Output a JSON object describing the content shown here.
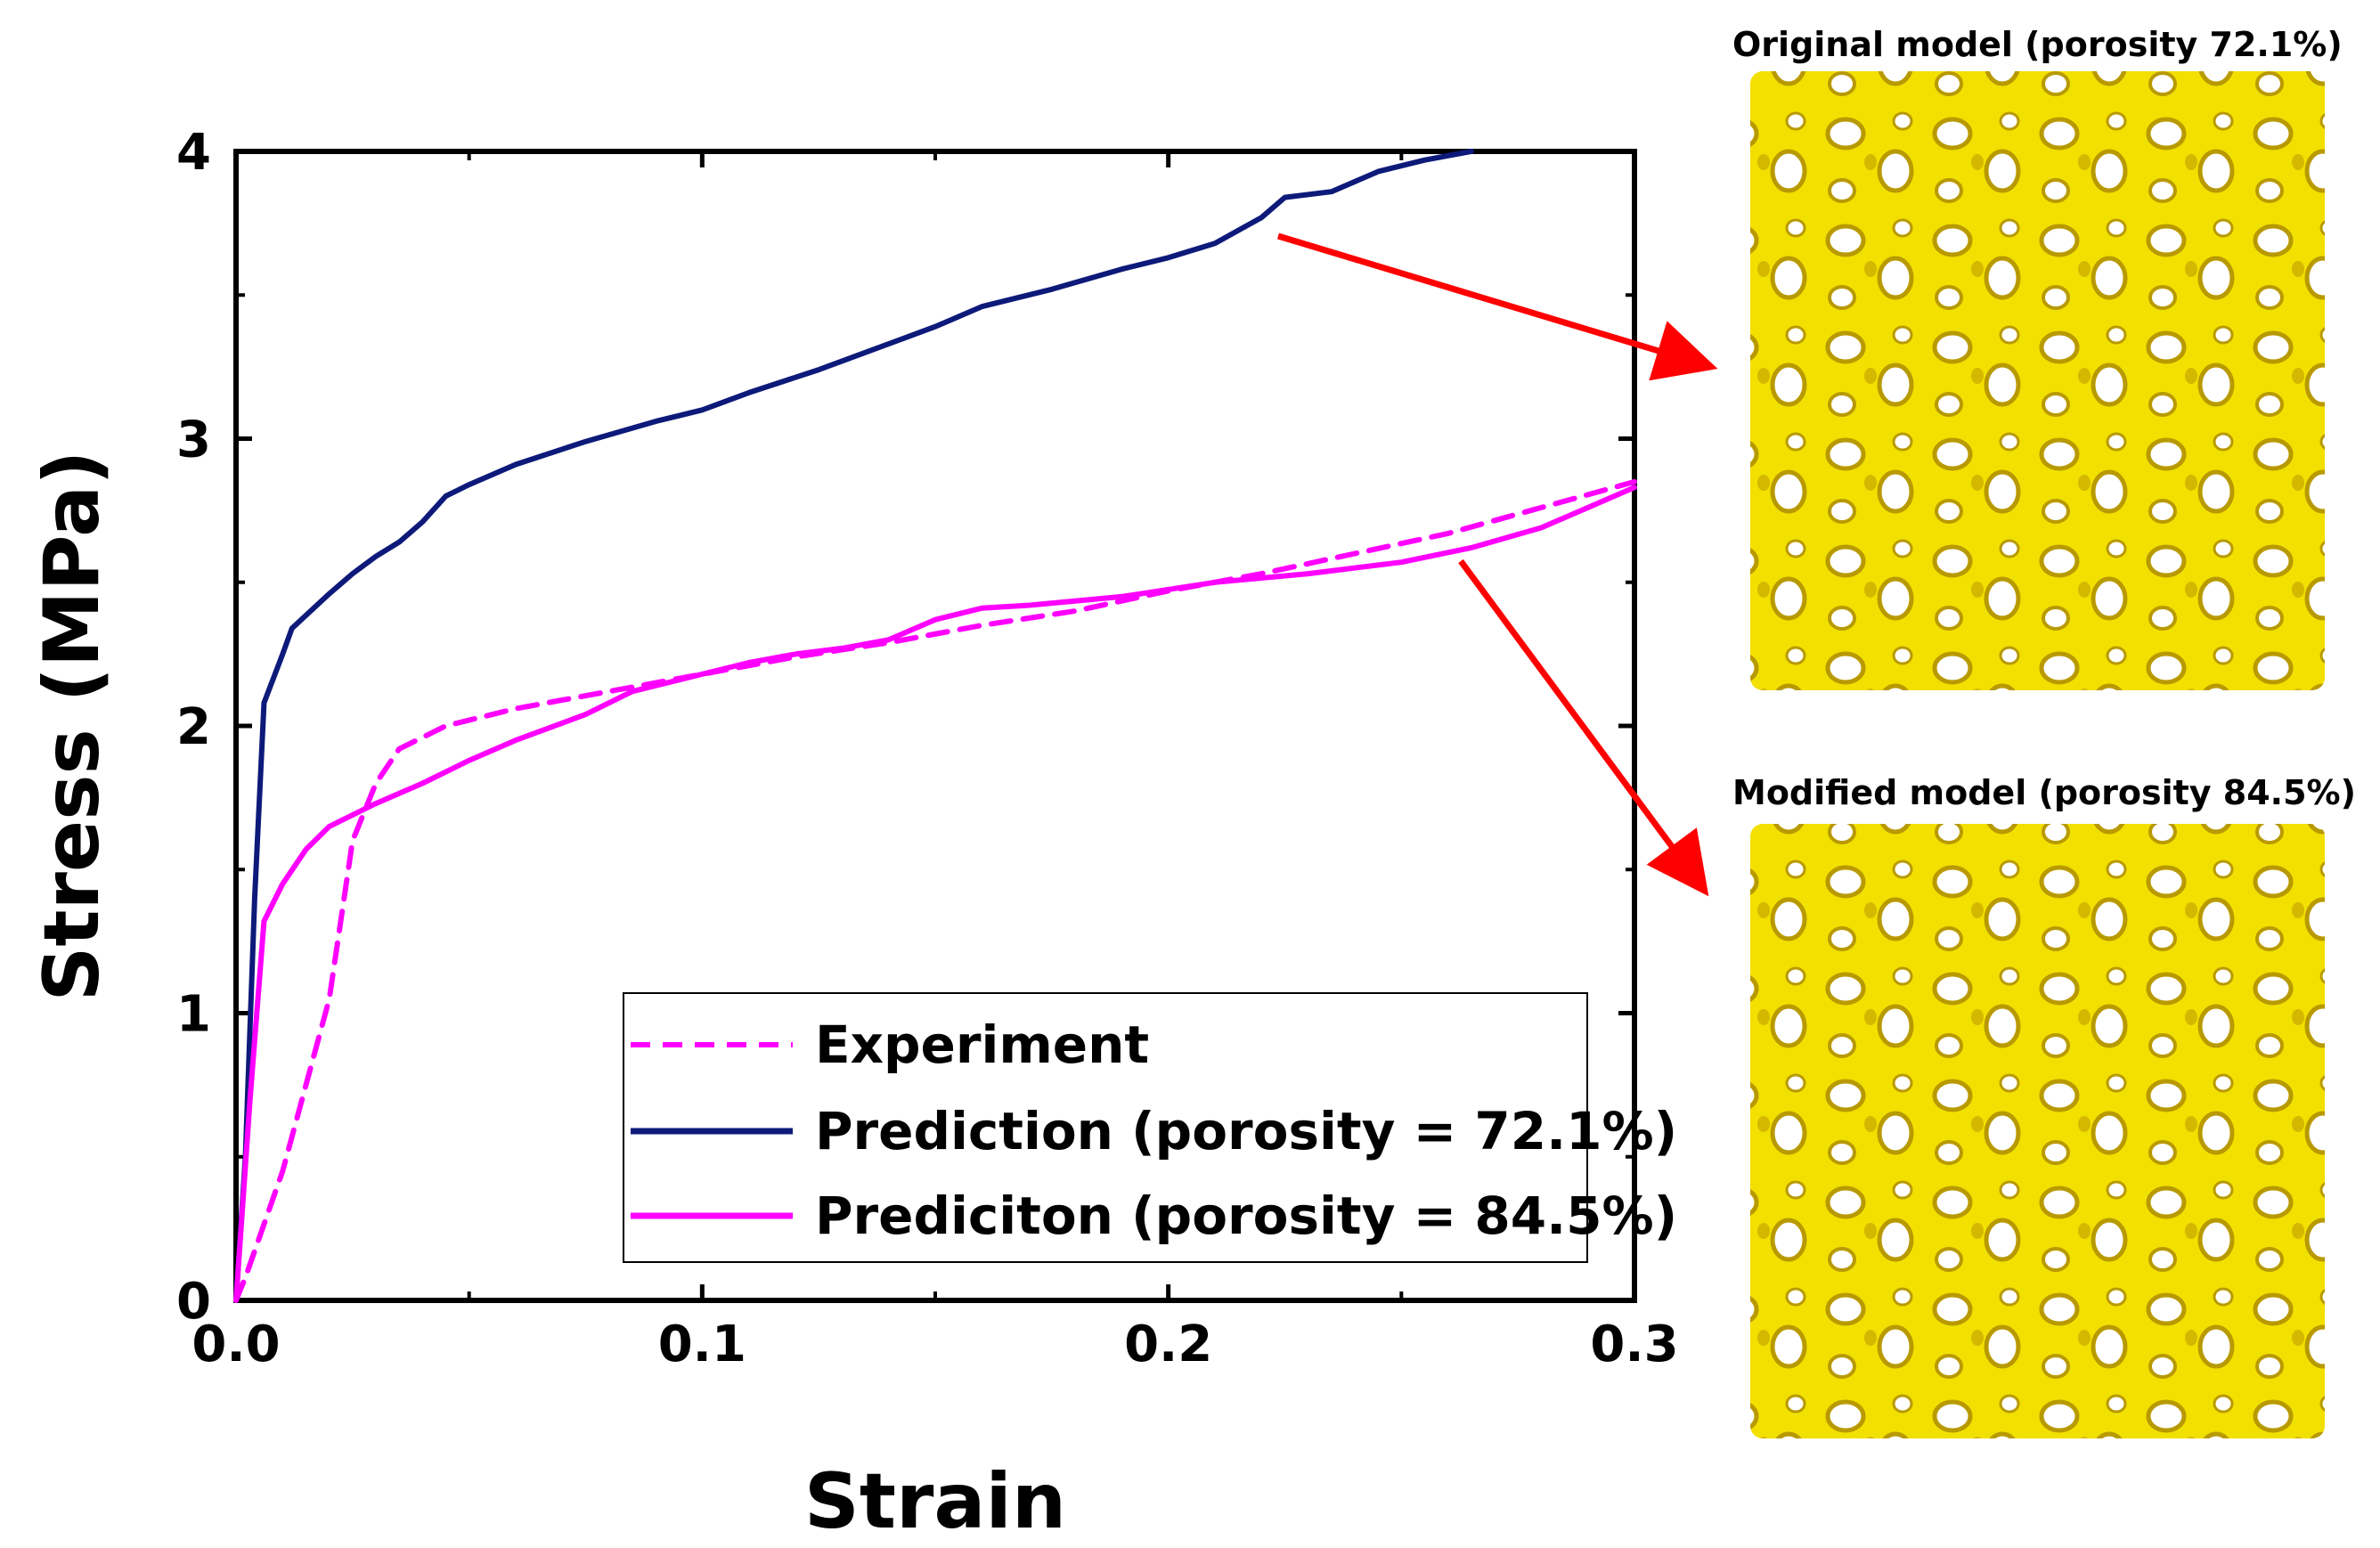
{
  "chart_data": {
    "type": "line",
    "xlabel": "Strain",
    "ylabel": "Stress (MPa)",
    "xlim": [
      0,
      0.3
    ],
    "ylim": [
      0,
      4
    ],
    "x_ticks": [
      "0.0",
      "0.1",
      "0.2",
      "0.3"
    ],
    "y_ticks": [
      "0",
      "1",
      "2",
      "3",
      "4"
    ],
    "legend_placement": "bottom-right",
    "series": [
      {
        "name": "Experiment",
        "color": "#ff00ff",
        "style": "dashed",
        "points": [
          [
            0,
            0
          ],
          [
            0.002,
            0.08
          ],
          [
            0.01,
            0.45
          ],
          [
            0.02,
            1.05
          ],
          [
            0.025,
            1.6
          ],
          [
            0.03,
            1.8
          ],
          [
            0.035,
            1.92
          ],
          [
            0.045,
            2.0
          ],
          [
            0.06,
            2.06
          ],
          [
            0.08,
            2.12
          ],
          [
            0.1,
            2.18
          ],
          [
            0.12,
            2.24
          ],
          [
            0.14,
            2.29
          ],
          [
            0.16,
            2.35
          ],
          [
            0.18,
            2.4
          ],
          [
            0.2,
            2.47
          ],
          [
            0.22,
            2.53
          ],
          [
            0.24,
            2.6
          ],
          [
            0.26,
            2.67
          ],
          [
            0.28,
            2.76
          ],
          [
            0.3,
            2.85
          ]
        ]
      },
      {
        "name": "Prediction (porosity = 72.1%)",
        "color": "#0d1a7a",
        "style": "solid",
        "points": [
          [
            0,
            0
          ],
          [
            0.002,
            0.5
          ],
          [
            0.004,
            1.4
          ],
          [
            0.006,
            2.08
          ],
          [
            0.01,
            2.25
          ],
          [
            0.012,
            2.34
          ],
          [
            0.02,
            2.46
          ],
          [
            0.025,
            2.53
          ],
          [
            0.03,
            2.59
          ],
          [
            0.035,
            2.64
          ],
          [
            0.04,
            2.71
          ],
          [
            0.045,
            2.8
          ],
          [
            0.05,
            2.84
          ],
          [
            0.06,
            2.91
          ],
          [
            0.075,
            2.99
          ],
          [
            0.09,
            3.06
          ],
          [
            0.1,
            3.1
          ],
          [
            0.11,
            3.16
          ],
          [
            0.125,
            3.24
          ],
          [
            0.14,
            3.33
          ],
          [
            0.15,
            3.39
          ],
          [
            0.16,
            3.46
          ],
          [
            0.175,
            3.52
          ],
          [
            0.19,
            3.59
          ],
          [
            0.2,
            3.63
          ],
          [
            0.21,
            3.68
          ],
          [
            0.22,
            3.77
          ],
          [
            0.225,
            3.84
          ],
          [
            0.235,
            3.86
          ],
          [
            0.245,
            3.93
          ],
          [
            0.255,
            3.97
          ],
          [
            0.265,
            4.0
          ]
        ]
      },
      {
        "name": "Prediciton (porosity = 84.5%)",
        "color": "#ff00ff",
        "style": "solid",
        "points": [
          [
            0,
            0
          ],
          [
            0.003,
            0.7
          ],
          [
            0.006,
            1.32
          ],
          [
            0.01,
            1.45
          ],
          [
            0.015,
            1.57
          ],
          [
            0.02,
            1.65
          ],
          [
            0.03,
            1.73
          ],
          [
            0.04,
            1.8
          ],
          [
            0.05,
            1.88
          ],
          [
            0.06,
            1.95
          ],
          [
            0.075,
            2.04
          ],
          [
            0.085,
            2.12
          ],
          [
            0.1,
            2.18
          ],
          [
            0.11,
            2.22
          ],
          [
            0.12,
            2.25
          ],
          [
            0.13,
            2.27
          ],
          [
            0.14,
            2.3
          ],
          [
            0.15,
            2.37
          ],
          [
            0.16,
            2.41
          ],
          [
            0.17,
            2.42
          ],
          [
            0.19,
            2.45
          ],
          [
            0.21,
            2.5
          ],
          [
            0.23,
            2.53
          ],
          [
            0.25,
            2.57
          ],
          [
            0.265,
            2.62
          ],
          [
            0.28,
            2.69
          ],
          [
            0.29,
            2.76
          ],
          [
            0.3,
            2.83
          ]
        ]
      }
    ]
  },
  "panels": {
    "original_title": "Original model (porosity 72.1%)",
    "modified_title": "Modified model (porosity 84.5%)",
    "foam_color": "#f2e000",
    "arrow_color": "#ff0000"
  }
}
